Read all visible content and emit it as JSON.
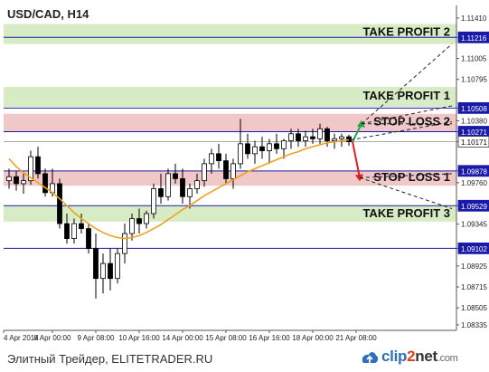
{
  "chart_data": {
    "type": "candlestick",
    "title": "USD/CAD, H14",
    "ylim": [
      1.0828,
      1.115
    ],
    "y_ticks": [
      1.1141,
      1.11216,
      1.11005,
      1.10795,
      1.10508,
      1.1038,
      1.10271,
      1.10171,
      1.09878,
      1.0976,
      1.09529,
      1.09345,
      1.09102,
      1.08925,
      1.08715,
      1.08505,
      1.08335
    ],
    "x_tick_labels": [
      "4 Apr 2014",
      "8 Apr 00:00",
      "9 Apr 08:00",
      "10 Apr 16:00",
      "14 Apr 00:00",
      "15 Apr 08:00",
      "16 Apr 16:00",
      "18 Apr 00:00",
      "21 Apr 08:00"
    ],
    "x_tick_pos": [
      0,
      6,
      12,
      18,
      24,
      30,
      36,
      42,
      48
    ],
    "levels": [
      {
        "name": "take-profit-2",
        "label": "TAKE PROFIT 2",
        "price": 1.11216,
        "price_label": "1.11216",
        "band": [
          1.1115,
          1.1135
        ],
        "fill": "#d7ebc4",
        "line": "#1a1aa8"
      },
      {
        "name": "take-profit-1",
        "label": "TAKE PROFIT 1",
        "price": 1.10508,
        "price_label": "1.10508",
        "band": [
          1.1052,
          1.1072
        ],
        "fill": "#d7ebc4",
        "line": "#1a1aa8"
      },
      {
        "name": "stop-loss-2",
        "label": "STOP LOSS 2",
        "price": 1.10271,
        "price_label": "1.10271",
        "band": [
          1.1027,
          1.1045
        ],
        "fill": "#f0c8c8",
        "line": "#1a1aa8"
      },
      {
        "name": "stop-loss-1",
        "label": "STOP LOSS 1",
        "price": 1.09878,
        "price_label": "1.09878",
        "band": [
          1.0973,
          1.0988
        ],
        "fill": "#f0c8c8",
        "line": "#1a1aa8"
      },
      {
        "name": "take-profit-3",
        "label": "TAKE PROFIT  3",
        "price": 1.09529,
        "price_label": "1.09529",
        "band": [
          1.0937,
          1.0953
        ],
        "fill": "#d7ebc4",
        "line": "#1a1aa8"
      },
      {
        "name": "support",
        "label": "",
        "price": 1.09102,
        "price_label": "1.09102",
        "band": null,
        "fill": "",
        "line": "#1a1aa8"
      }
    ],
    "current_price": 1.10171,
    "current_price_label": "1.10171",
    "ma_color": "#f0a020",
    "candles": [
      [
        1.0978,
        1.099,
        1.097,
        1.0982
      ],
      [
        1.0982,
        1.0988,
        1.0968,
        1.0975
      ],
      [
        1.0975,
        1.0985,
        1.0965,
        1.0978
      ],
      [
        1.0978,
        1.1008,
        1.0974,
        1.1002
      ],
      [
        1.1002,
        1.1012,
        1.098,
        1.0985
      ],
      [
        1.0985,
        1.099,
        1.0962,
        1.0966
      ],
      [
        1.0966,
        1.099,
        1.0962,
        1.0975
      ],
      [
        1.0975,
        1.098,
        1.093,
        1.0935
      ],
      [
        1.0935,
        1.0945,
        1.0915,
        1.092
      ],
      [
        1.092,
        1.094,
        1.0915,
        1.0935
      ],
      [
        1.0935,
        1.0945,
        1.0925,
        1.093
      ],
      [
        1.093,
        1.0935,
        1.0905,
        1.091
      ],
      [
        1.091,
        1.0925,
        1.086,
        1.088
      ],
      [
        1.088,
        1.0905,
        1.0865,
        1.0895
      ],
      [
        1.0895,
        1.091,
        1.0868,
        1.088
      ],
      [
        1.088,
        1.091,
        1.0875,
        1.0905
      ],
      [
        1.0905,
        1.0935,
        1.0895,
        1.0925
      ],
      [
        1.0925,
        1.0945,
        1.0918,
        1.094
      ],
      [
        1.094,
        1.095,
        1.0925,
        1.0935
      ],
      [
        1.0935,
        1.0948,
        1.093,
        1.0945
      ],
      [
        1.0945,
        1.0975,
        1.094,
        1.097
      ],
      [
        1.097,
        1.0985,
        1.0955,
        1.0962
      ],
      [
        1.0962,
        1.099,
        1.0958,
        1.0985
      ],
      [
        1.0985,
        1.0995,
        1.0975,
        1.098
      ],
      [
        1.098,
        1.099,
        1.0955,
        1.0962
      ],
      [
        1.0962,
        1.0975,
        1.095,
        1.097
      ],
      [
        1.097,
        1.0985,
        1.0965,
        1.0978
      ],
      [
        1.0978,
        1.1,
        1.0972,
        1.0995
      ],
      [
        1.0995,
        1.101,
        1.0985,
        1.1005
      ],
      [
        1.1005,
        1.1015,
        1.099,
        1.0998
      ],
      [
        1.0998,
        1.1005,
        1.0975,
        1.098
      ],
      [
        1.098,
        1.1,
        1.097,
        1.0995
      ],
      [
        1.0995,
        1.104,
        1.099,
        1.1015
      ],
      [
        1.1015,
        1.1025,
        1.1,
        1.1005
      ],
      [
        1.1005,
        1.1018,
        1.0995,
        1.1012
      ],
      [
        1.1012,
        1.1022,
        1.1,
        1.1008
      ],
      [
        1.1008,
        1.102,
        1.0995,
        1.1015
      ],
      [
        1.1015,
        1.1025,
        1.1005,
        1.101
      ],
      [
        1.101,
        1.102,
        1.1,
        1.1018
      ],
      [
        1.1018,
        1.103,
        1.101,
        1.1025
      ],
      [
        1.1025,
        1.103,
        1.1012,
        1.1018
      ],
      [
        1.1018,
        1.1028,
        1.1012,
        1.1022
      ],
      [
        1.1022,
        1.103,
        1.1015,
        1.102
      ],
      [
        1.102,
        1.1035,
        1.1015,
        1.103
      ],
      [
        1.103,
        1.1032,
        1.1012,
        1.1018
      ],
      [
        1.1018,
        1.1025,
        1.101,
        1.102
      ],
      [
        1.102,
        1.1025,
        1.1012,
        1.1022
      ],
      [
        1.1022,
        1.1024,
        1.1013,
        1.1017
      ]
    ],
    "ma": [
      1.1,
      1.0992,
      1.0986,
      1.0981,
      1.0976,
      1.0971,
      1.0966,
      1.096,
      1.0953,
      1.0946,
      1.094,
      1.0935,
      1.093,
      1.0926,
      1.0923,
      1.0921,
      1.092,
      1.0921,
      1.0923,
      1.0926,
      1.093,
      1.0934,
      1.0939,
      1.0944,
      1.0949,
      1.0953,
      1.0958,
      1.0963,
      1.0967,
      1.0971,
      1.0975,
      1.0979,
      1.0983,
      1.0987,
      1.099,
      1.0993,
      1.0996,
      1.0999,
      1.1002,
      1.1005,
      1.1007,
      1.101,
      1.1012,
      1.1014,
      1.1016,
      1.1017,
      1.1018,
      1.1019
    ],
    "forecast": {
      "up_arrow_color": "#2aa050",
      "down_arrow_color": "#e02020",
      "down_target": 1.0981,
      "up_target": 1.1035
    }
  },
  "footer": {
    "caption": "Элитный Трейдер, ELITETRADER.RU"
  },
  "logo": {
    "part1": "clip",
    "part2": "2",
    "part3": "net",
    "part4": ".com"
  }
}
